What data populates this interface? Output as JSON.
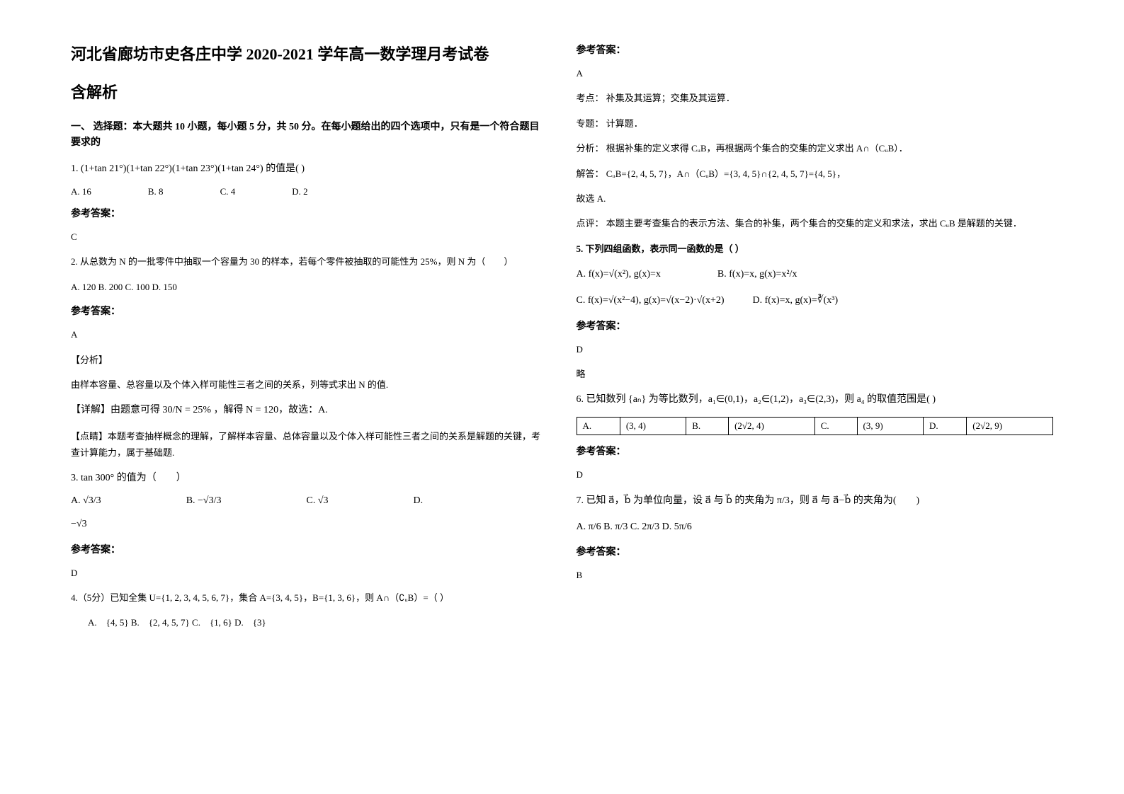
{
  "left": {
    "title_line1": "河北省廊坊市史各庄中学 2020-2021 学年高一数学理月考试卷",
    "title_line2": "含解析",
    "section1_heading": "一、 选择题：本大题共 10 小题，每小题 5 分，共 50 分。在每小题给出的四个选项中，只有是一个符合题目要求的",
    "q1": {
      "stem": "1. (1+tan 21°)(1+tan 22°)(1+tan 23°)(1+tan 24°) 的值是(    )",
      "opts": [
        "A. 16",
        "B. 8",
        "C. 4",
        "D. 2"
      ],
      "answer_label": "参考答案：",
      "answer": "C"
    },
    "q2": {
      "stem": "2. 从总数为 N 的一批零件中抽取一个容量为 30 的样本，若每个零件被抽取的可能性为 25%，则 N 为（　　）",
      "opts_line": "A. 120   B. 200   C. 100   D. 150",
      "answer_label": "参考答案：",
      "answer": "A",
      "analysis_label": "【分析】",
      "analysis": "由样本容量、总容量以及个体入样可能性三者之间的关系，列等式求出 N 的值.",
      "detail": "【详解】由题意可得 30/N = 25% ，解得 N = 120，故选：A.",
      "point": "【点睛】本题考查抽样概念的理解，了解样本容量、总体容量以及个体入样可能性三者之间的关系是解题的关键，考查计算能力，属于基础题."
    },
    "q3": {
      "stem": "3. tan 300° 的值为（　　）",
      "opts": [
        "A.  √3/3",
        "B.  −√3/3",
        "C.  √3",
        "D."
      ],
      "opt_d_extra": "−√3",
      "answer_label": "参考答案：",
      "answer": "D"
    },
    "q4": {
      "stem": "4.（5分）已知全集 U={1, 2, 3, 4, 5, 6, 7}，集合 A={3, 4, 5}，B={1, 3, 6}，则 A∩（∁ᵤB）=（ ）",
      "opts": "A.　{4, 5}  B.　{2, 4, 5, 7}  C.　{1, 6}  D.　{3}"
    }
  },
  "right": {
    "q4_answer_label": "参考答案：",
    "q4_answer": "A",
    "q4_kaodian_label": "考点：",
    "q4_kaodian": "补集及其运算；交集及其运算．",
    "q4_zhuanti_label": "专题：",
    "q4_zhuanti": "计算题．",
    "q4_fenxi_label": "分析：",
    "q4_fenxi": "根据补集的定义求得 CᵤB，再根据两个集合的交集的定义求出  A∩（CᵤB）．",
    "q4_jieda_label": "解答：",
    "q4_jieda": "CᵤB={2, 4, 5, 7}，A∩（CᵤB）={3, 4, 5}∩{2, 4, 5, 7}={4, 5}，",
    "q4_guxuan": "故选 A.",
    "q4_dianping_label": "点评：",
    "q4_dianping": "本题主要考查集合的表示方法、集合的补集，两个集合的交集的定义和求法，求出 CᵤB 是解题的关键．",
    "q5": {
      "stem": "5. 下列四组函数，表示同一函数的是（  ）",
      "optA": "A.  f(x)=√(x²), g(x)=x",
      "optB": "B.  f(x)=x, g(x)=x²/x",
      "optC": "C.  f(x)=√(x²−4), g(x)=√(x−2)·√(x+2)",
      "optD": "D.  f(x)=x, g(x)=∛(x³)",
      "answer_label": "参考答案：",
      "answer": "D",
      "extra": "略"
    },
    "q6": {
      "stem": "6. 已知数列 {aₙ} 为等比数列，a₁∈(0,1)，a₂∈(1,2)，a₃∈(2,3)，则 a₄ 的取值范围是(    )",
      "table": [
        [
          "A.",
          "(3, 4)",
          "B.",
          "(2√2, 4)",
          "C.",
          "(3, 9)",
          "D.",
          "(2√2, 9)"
        ]
      ],
      "answer_label": "参考答案：",
      "answer": "D"
    },
    "q7": {
      "stem": "7. 已知 a⃗，b⃗ 为单位向量，设 a⃗ 与 b⃗ 的夹角为 π/3，则 a⃗ 与 a⃗−b⃗ 的夹角为(　　)",
      "opts": "A. π/6   B. π/3   C. 2π/3   D. 5π/6",
      "answer_label": "参考答案：",
      "answer": "B"
    }
  }
}
